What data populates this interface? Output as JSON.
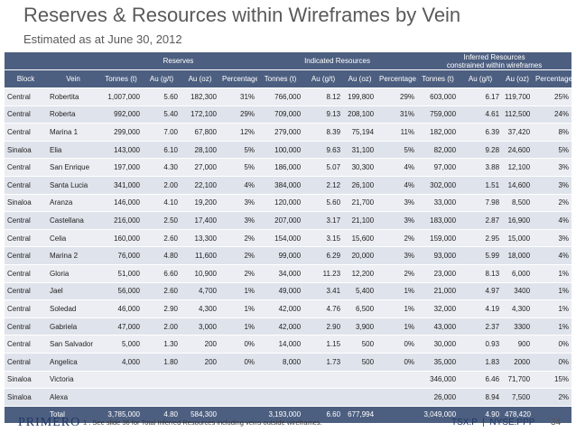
{
  "header": {
    "title": "Reserves & Resources within Wireframes by Vein",
    "subtitle": "Estimated as at June 30, 2012"
  },
  "table": {
    "groups": [
      {
        "label": "Reserves"
      },
      {
        "label": "Indicated Resources"
      },
      {
        "label": "Inferred Resources",
        "sublabel": "constrained within wireframes"
      }
    ],
    "columns": [
      "Block",
      "Vein",
      "Tonnes (t)",
      "Au (g/t)",
      "Au (oz)",
      "Percentage",
      "Tonnes (t)",
      "Au (g/t)",
      "Au (oz)",
      "Percentage",
      "Tonnes (t)",
      "Au (g/t)",
      "Au (oz)",
      "Percentage"
    ],
    "rows": [
      [
        "Central",
        "Robertita",
        "1,007,000",
        "5.60",
        "182,300",
        "31%",
        "766,000",
        "8.12",
        "199,800",
        "29%",
        "603,000",
        "6.17",
        "119,700",
        "25%"
      ],
      [
        "Central",
        "Roberta",
        "992,000",
        "5.40",
        "172,100",
        "29%",
        "709,000",
        "9.13",
        "208,100",
        "31%",
        "759,000",
        "4.61",
        "112,500",
        "24%"
      ],
      [
        "Central",
        "Marina 1",
        "299,000",
        "7.00",
        "67,800",
        "12%",
        "279,000",
        "8.39",
        "75,194",
        "11%",
        "182,000",
        "6.39",
        "37,420",
        "8%"
      ],
      [
        "Sinaloa",
        "Elia",
        "143,000",
        "6.10",
        "28,100",
        "5%",
        "100,000",
        "9.63",
        "31,100",
        "5%",
        "82,000",
        "9.28",
        "24,600",
        "5%"
      ],
      [
        "Central",
        "San Enrique",
        "197,000",
        "4.30",
        "27,000",
        "5%",
        "186,000",
        "5.07",
        "30,300",
        "4%",
        "97,000",
        "3.88",
        "12,100",
        "3%"
      ],
      [
        "Central",
        "Santa Lucia",
        "341,000",
        "2.00",
        "22,100",
        "4%",
        "384,000",
        "2.12",
        "26,100",
        "4%",
        "302,000",
        "1.51",
        "14,600",
        "3%"
      ],
      [
        "Sinaloa",
        "Aranza",
        "146,000",
        "4.10",
        "19,200",
        "3%",
        "120,000",
        "5.60",
        "21,700",
        "3%",
        "33,000",
        "7.98",
        "8,500",
        "2%"
      ],
      [
        "Central",
        "Castellana",
        "216,000",
        "2.50",
        "17,400",
        "3%",
        "207,000",
        "3.17",
        "21,100",
        "3%",
        "183,000",
        "2.87",
        "16,900",
        "4%"
      ],
      [
        "Central",
        "Celia",
        "160,000",
        "2.60",
        "13,300",
        "2%",
        "154,000",
        "3.15",
        "15,600",
        "2%",
        "159,000",
        "2.95",
        "15,000",
        "3%"
      ],
      [
        "Central",
        "Marina 2",
        "76,000",
        "4.80",
        "11,600",
        "2%",
        "99,000",
        "6.29",
        "20,000",
        "3%",
        "93,000",
        "5.99",
        "18,000",
        "4%"
      ],
      [
        "Central",
        "Gloria",
        "51,000",
        "6.60",
        "10,900",
        "2%",
        "34,000",
        "11.23",
        "12,200",
        "2%",
        "23,000",
        "8.13",
        "6,000",
        "1%"
      ],
      [
        "Central",
        "Jael",
        "56,000",
        "2.60",
        "4,700",
        "1%",
        "49,000",
        "3.41",
        "5,400",
        "1%",
        "21,000",
        "4.97",
        "3400",
        "1%"
      ],
      [
        "Central",
        "Soledad",
        "46,000",
        "2.90",
        "4,300",
        "1%",
        "42,000",
        "4.76",
        "6,500",
        "1%",
        "32,000",
        "4.19",
        "4,300",
        "1%"
      ],
      [
        "Central",
        "Gabriela",
        "47,000",
        "2.00",
        "3,000",
        "1%",
        "42,000",
        "2.90",
        "3,900",
        "1%",
        "43,000",
        "2.37",
        "3300",
        "1%"
      ],
      [
        "Central",
        "San Salvador",
        "5,000",
        "1.30",
        "200",
        "0%",
        "14,000",
        "1.15",
        "500",
        "0%",
        "30,000",
        "0.93",
        "900",
        "0%"
      ],
      [
        "Central",
        "Angelica",
        "4,000",
        "1.80",
        "200",
        "0%",
        "8,000",
        "1.73",
        "500",
        "0%",
        "35,000",
        "1.83",
        "2000",
        "0%"
      ],
      [
        "Sinaloa",
        "Victoria",
        null,
        null,
        null,
        null,
        null,
        null,
        null,
        null,
        "346,000",
        "6.46",
        "71,700",
        "15%"
      ],
      [
        "Sinaloa",
        "Alexa",
        null,
        null,
        null,
        null,
        null,
        null,
        null,
        null,
        "26,000",
        "8.94",
        "7,500",
        "2%"
      ]
    ],
    "total": [
      null,
      "Total",
      "3,785,000",
      "4.80",
      "584,300",
      null,
      "3,193,000",
      "6.60",
      "677,994",
      null,
      "3,049,000",
      "4.90",
      "478,420",
      null
    ]
  },
  "footer": {
    "logo": "PRIMERO",
    "note": "1 . See slide 36 for Total Inferred Resources including veins outside wireframes.",
    "tickers": "TSX:P  |  NYSE:PPP",
    "page": "34"
  }
}
